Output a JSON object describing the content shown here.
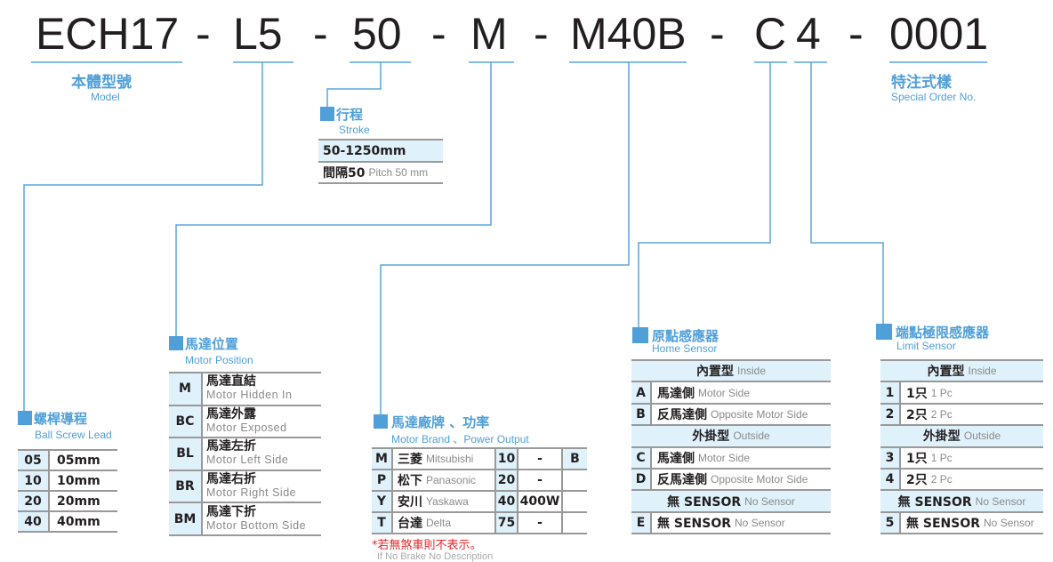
{
  "code": {
    "segments": [
      "ECH17",
      "-",
      "L5",
      "-",
      "50",
      "-",
      "M",
      "-",
      "M40B",
      "-",
      "C",
      "4",
      "-",
      "0001"
    ]
  },
  "model": {
    "title": "本體型號",
    "sub": "Model"
  },
  "special": {
    "title": "特注式樣",
    "sub": "Special Order No."
  },
  "stroke": {
    "title": "行程",
    "sub": "Stroke",
    "rows": [
      {
        "zh": "50-1250mm",
        "en": ""
      },
      {
        "zh": "間隔50",
        "en": "Pitch 50 mm"
      }
    ]
  },
  "lead": {
    "title": "螺桿導程",
    "sub": "Ball Screw Lead",
    "rows": [
      {
        "code": "05",
        "val": "05mm"
      },
      {
        "code": "10",
        "val": "10mm"
      },
      {
        "code": "20",
        "val": "20mm"
      },
      {
        "code": "40",
        "val": "40mm"
      }
    ]
  },
  "position": {
    "title": "馬達位置",
    "sub": "Motor Position",
    "rows": [
      {
        "code": "M",
        "zh": "馬達直結",
        "en": "Motor Hidden In"
      },
      {
        "code": "BC",
        "zh": "馬達外露",
        "en": "Motor Exposed"
      },
      {
        "code": "BL",
        "zh": "馬達左折",
        "en": "Motor Left Side"
      },
      {
        "code": "BR",
        "zh": "馬達右折",
        "en": "Motor Right Side"
      },
      {
        "code": "BM",
        "zh": "馬達下折",
        "en": "Motor Bottom Side"
      }
    ]
  },
  "brand": {
    "title": "馬達廠牌 、功率",
    "sub": "Motor Brand 、Power Output",
    "brake": "B",
    "rows": [
      {
        "code": "M",
        "zh": "三菱",
        "en": "Mitsubishi",
        "pcode": "10",
        "power": "-"
      },
      {
        "code": "P",
        "zh": "松下",
        "en": "Panasonic",
        "pcode": "20",
        "power": "-"
      },
      {
        "code": "Y",
        "zh": "安川",
        "en": "Yaskawa",
        "pcode": "40",
        "power": "400W"
      },
      {
        "code": "T",
        "zh": "台達",
        "en": "Delta",
        "pcode": "75",
        "power": "-"
      }
    ],
    "note": "*若無煞車則不表示。",
    "note_en": "If No Brake No Description"
  },
  "home": {
    "title": "原點感應器",
    "sub": "Home Sensor",
    "rows": [
      {
        "type": "header",
        "zh": "內置型",
        "en": "Inside"
      },
      {
        "code": "A",
        "zh": "馬達側",
        "en": "Motor Side"
      },
      {
        "code": "B",
        "zh": "反馬達側",
        "en": "Opposite Motor Side"
      },
      {
        "type": "header",
        "zh": "外掛型",
        "en": "Outside"
      },
      {
        "code": "C",
        "zh": "馬達側",
        "en": "Motor Side"
      },
      {
        "code": "D",
        "zh": "反馬達側",
        "en": "Opposite Motor Side"
      },
      {
        "type": "header",
        "zh": "無 SENSOR",
        "en": "No Sensor"
      },
      {
        "code": "E",
        "zh": "無 SENSOR",
        "en": "No Sensor"
      }
    ]
  },
  "limit": {
    "title": "端點極限感應器",
    "sub": "Limit Sensor",
    "rows": [
      {
        "type": "header",
        "zh": "內置型",
        "en": "Inside"
      },
      {
        "code": "1",
        "zh": "1只",
        "en": "1 Pc"
      },
      {
        "code": "2",
        "zh": "2只",
        "en": "2 Pc"
      },
      {
        "type": "header",
        "zh": "外掛型",
        "en": "Outside"
      },
      {
        "code": "3",
        "zh": "1只",
        "en": "1 Pc"
      },
      {
        "code": "4",
        "zh": "2只",
        "en": "2 Pc"
      },
      {
        "type": "header",
        "zh": "無 SENSOR",
        "en": "No Sensor"
      },
      {
        "code": "5",
        "zh": "無 SENSOR",
        "en": "No Sensor"
      }
    ]
  },
  "colors": {
    "accent": "#4f9fd8",
    "cell": "#dff1fb",
    "note": "#e8262b"
  }
}
